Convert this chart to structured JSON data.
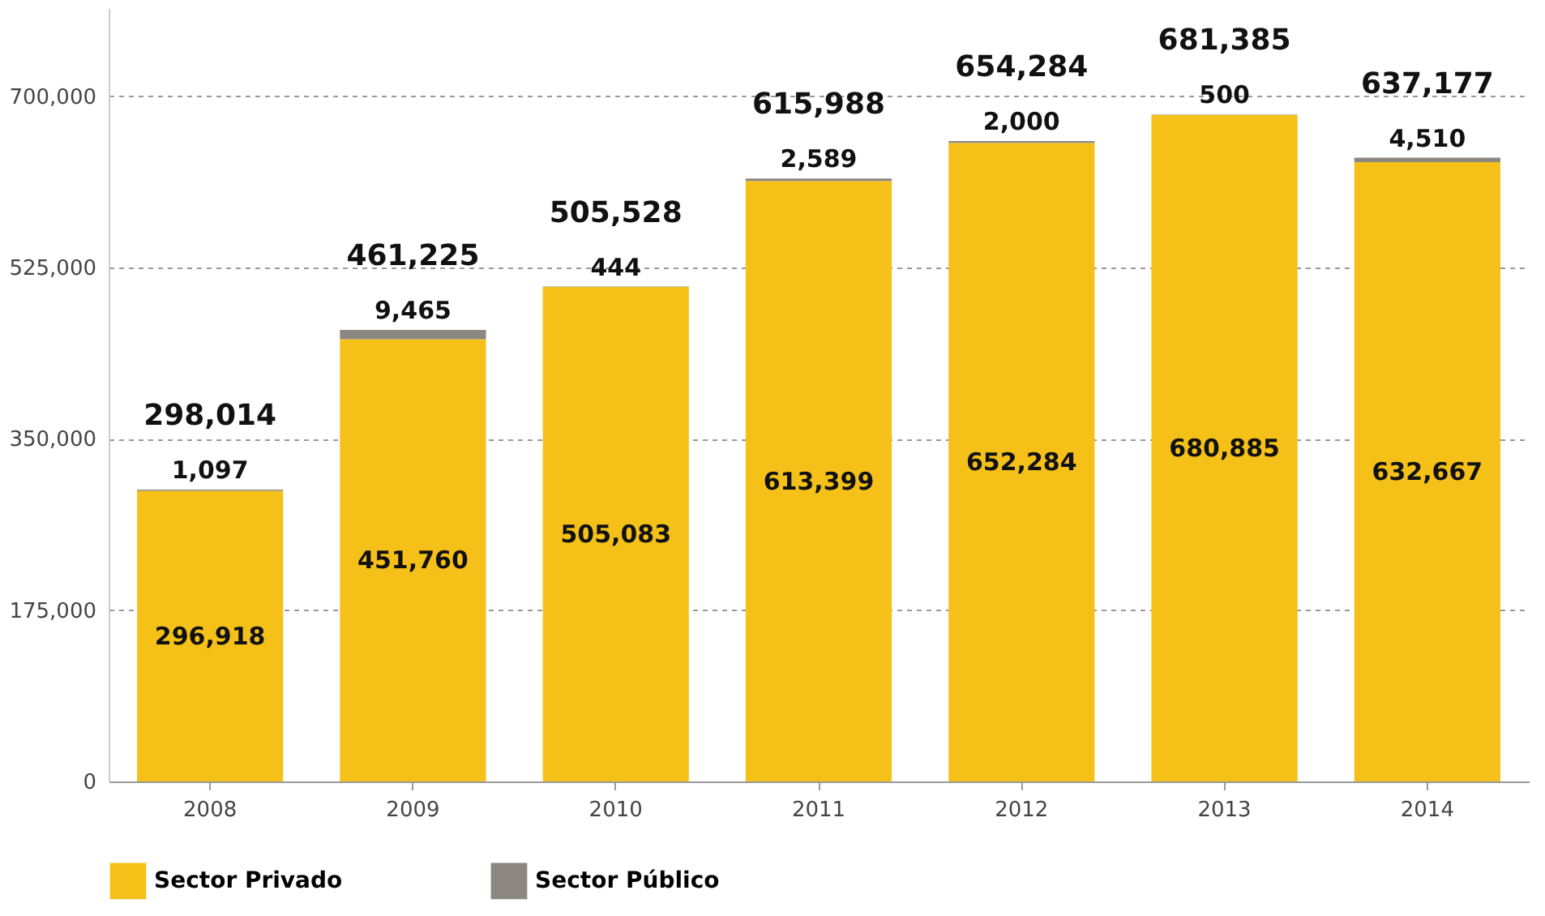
{
  "chart_data": {
    "type": "bar",
    "stacked": true,
    "categories": [
      "2008",
      "2009",
      "2010",
      "2011",
      "2012",
      "2013",
      "2014"
    ],
    "series": [
      {
        "name": "Sector Privado",
        "color": "#f5c118",
        "values": [
          296918,
          451760,
          505083,
          613399,
          652284,
          680885,
          632667
        ],
        "value_labels": [
          "296,918",
          "451,760",
          "505,083",
          "613,399",
          "652,284",
          "680,885",
          "632,667"
        ]
      },
      {
        "name": "Sector Público",
        "color": "#8c8781",
        "values": [
          1097,
          9465,
          444,
          2589,
          2000,
          500,
          4510
        ],
        "value_labels": [
          "1,097",
          "9,465",
          "444",
          "2,589",
          "2,000",
          "500",
          "4,510"
        ]
      }
    ],
    "totals": [
      "298,014",
      "461,225",
      "505,528",
      "615,988",
      "654,284",
      "681,385",
      "637,177"
    ],
    "ylim": [
      0,
      790000
    ],
    "yticks": [
      {
        "value": 0,
        "label": "0"
      },
      {
        "value": 175000,
        "label": "175,000"
      },
      {
        "value": 350000,
        "label": "350,000"
      },
      {
        "value": 525000,
        "label": "525,000"
      },
      {
        "value": 700000,
        "label": "700,000"
      }
    ],
    "grid": "y",
    "legend": "bottom left"
  }
}
